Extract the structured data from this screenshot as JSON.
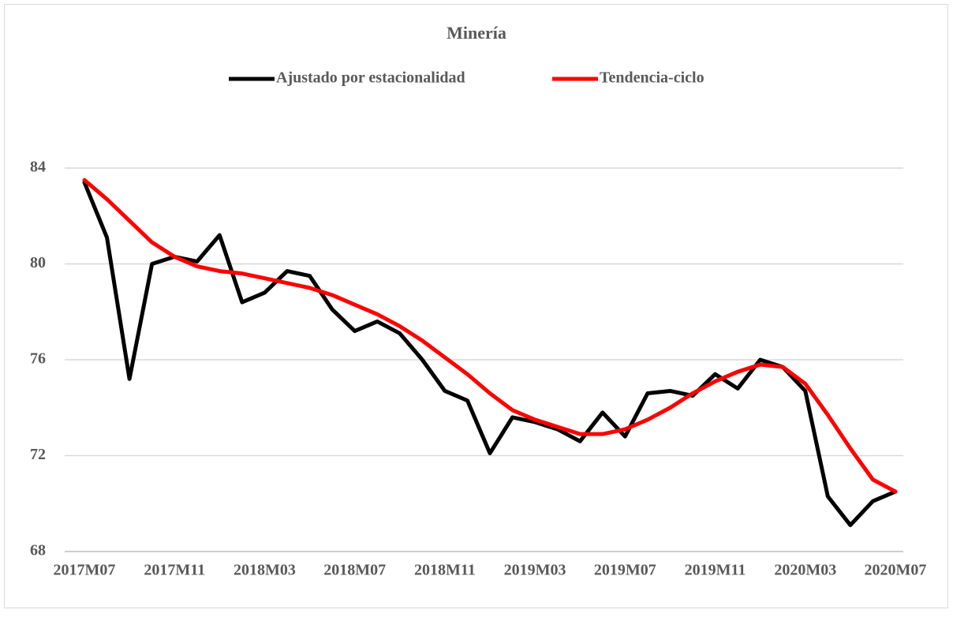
{
  "chart_data": {
    "type": "line",
    "title": "Minería",
    "categories": [
      "2017M07",
      null,
      null,
      null,
      "2017M11",
      null,
      null,
      null,
      "2018M03",
      null,
      null,
      null,
      "2018M07",
      null,
      null,
      null,
      "2018M11",
      null,
      null,
      null,
      "2019M03",
      null,
      null,
      null,
      "2019M07",
      null,
      null,
      null,
      "2019M11",
      null,
      null,
      null,
      "2020M03",
      null,
      null,
      null,
      "2020M07"
    ],
    "series": [
      {
        "name": "Ajustado por estacionalidad",
        "color": "#000000",
        "values": [
          83.4,
          81.1,
          75.2,
          80.0,
          80.3,
          80.1,
          81.2,
          78.4,
          78.8,
          79.7,
          79.5,
          78.1,
          77.2,
          77.6,
          77.1,
          76.0,
          74.7,
          74.3,
          72.1,
          73.6,
          73.4,
          73.1,
          72.6,
          73.8,
          72.8,
          74.6,
          74.7,
          74.5,
          75.4,
          74.8,
          76.0,
          75.7,
          74.7,
          70.3,
          69.1,
          70.1,
          70.5
        ]
      },
      {
        "name": "Tendencia-ciclo",
        "color": "#ff0000",
        "values": [
          83.5,
          82.7,
          81.8,
          80.9,
          80.3,
          79.9,
          79.7,
          79.6,
          79.4,
          79.2,
          79.0,
          78.7,
          78.3,
          77.9,
          77.4,
          76.8,
          76.1,
          75.4,
          74.6,
          73.9,
          73.5,
          73.2,
          72.9,
          72.9,
          73.1,
          73.5,
          74.0,
          74.6,
          75.1,
          75.5,
          75.8,
          75.7,
          75.0,
          73.7,
          72.3,
          71.0,
          70.5
        ]
      }
    ],
    "ylim": [
      68,
      84
    ],
    "yticks": [
      68,
      72,
      76,
      80,
      84
    ],
    "grid": true,
    "legend": "top"
  }
}
